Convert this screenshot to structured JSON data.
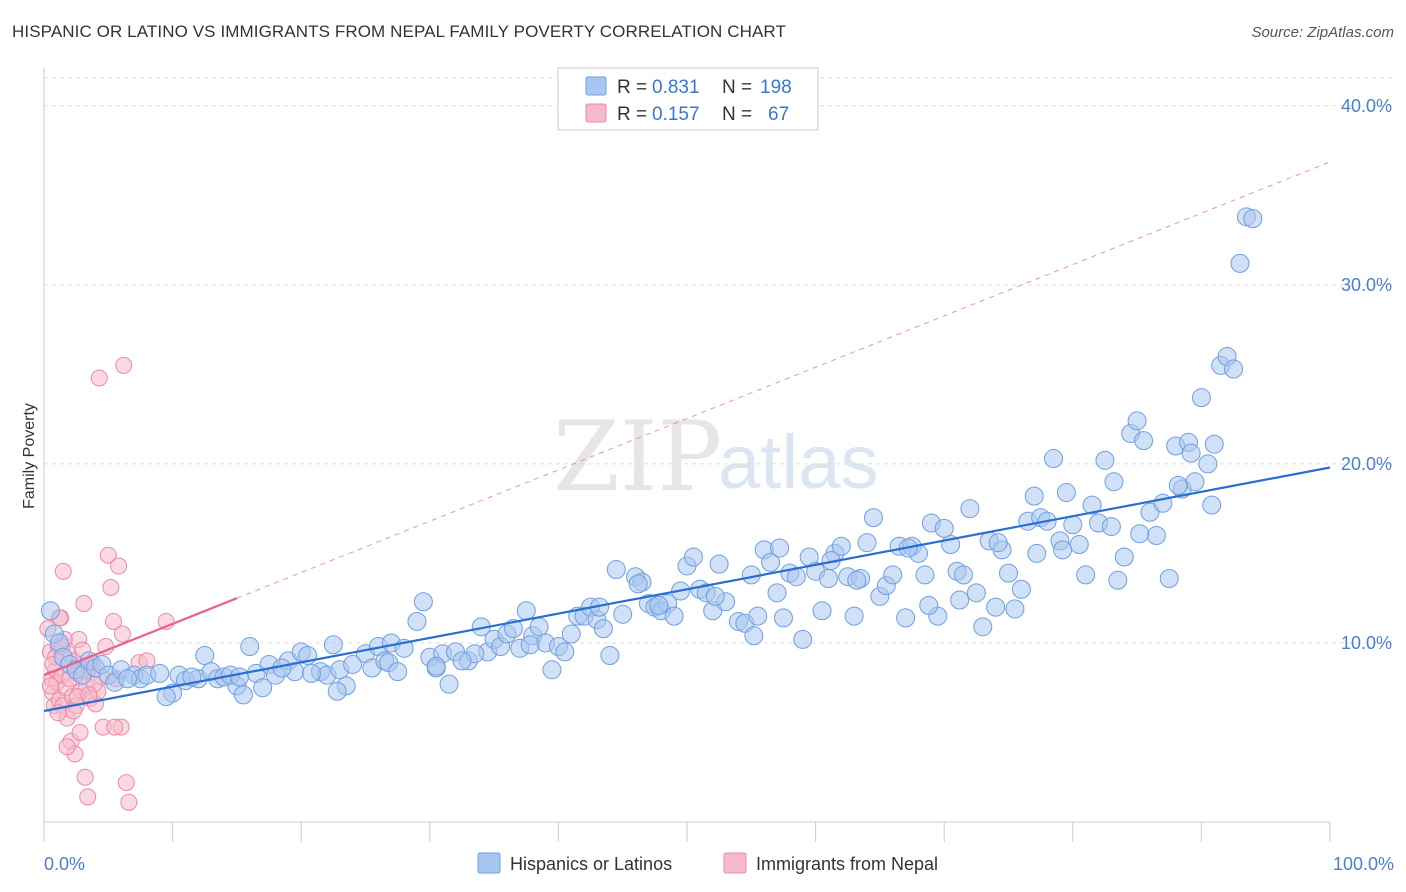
{
  "title": "HISPANIC OR LATINO VS IMMIGRANTS FROM NEPAL FAMILY POVERTY CORRELATION CHART",
  "source": "Source: ZipAtlas.com",
  "watermark": {
    "part1": "ZIP",
    "part2": "atlas"
  },
  "legend": {
    "series1": {
      "r_label": "R =",
      "r_value": "0.831",
      "n_label": "N =",
      "n_value": "198"
    },
    "series2": {
      "r_label": "R =",
      "r_value": "0.157",
      "n_label": "N =",
      "n_value": "67"
    }
  },
  "bottom_legend": {
    "series1": "Hispanics or Latinos",
    "series2": "Immigrants from Nepal"
  },
  "colors": {
    "blue_fill": "#a9c6f0",
    "blue_stroke": "#6f9fe0",
    "blue_line": "#2a6fd0",
    "pink_fill": "#f6b9cb",
    "pink_stroke": "#ec8aa8",
    "pink_line": "#e8628a",
    "tick": "#4a7fd0"
  },
  "chart_data": {
    "type": "scatter",
    "title": "HISPANIC OR LATINO VS IMMIGRANTS FROM NEPAL FAMILY POVERTY CORRELATION CHART",
    "xlabel": "",
    "ylabel": "Family Poverty",
    "xlim": [
      0,
      100
    ],
    "ylim": [
      0,
      42
    ],
    "x_tick_labels": [
      "0.0%",
      "100.0%"
    ],
    "y_ticks": [
      10,
      20,
      30,
      40
    ],
    "y_tick_labels": [
      "10.0%",
      "20.0%",
      "30.0%",
      "40.0%"
    ],
    "grid": true,
    "legend_position": "top-center",
    "series": [
      {
        "name": "Hispanics or Latinos",
        "trend": {
          "x": [
            0,
            100
          ],
          "y": [
            6.2,
            19.8
          ]
        },
        "points": [
          [
            0.5,
            11.8
          ],
          [
            0.8,
            10.5
          ],
          [
            1.2,
            10.0
          ],
          [
            1.5,
            9.2
          ],
          [
            2.0,
            8.8
          ],
          [
            2.5,
            8.5
          ],
          [
            3.0,
            8.2
          ],
          [
            3.5,
            9.0
          ],
          [
            4.0,
            8.6
          ],
          [
            4.5,
            8.8
          ],
          [
            5.0,
            8.2
          ],
          [
            5.5,
            7.8
          ],
          [
            6.0,
            8.5
          ],
          [
            7.0,
            8.2
          ],
          [
            7.5,
            8.0
          ],
          [
            8.0,
            8.2
          ],
          [
            9.0,
            8.3
          ],
          [
            10.0,
            7.2
          ],
          [
            10.5,
            8.2
          ],
          [
            11.0,
            7.9
          ],
          [
            12.0,
            8.0
          ],
          [
            12.5,
            9.3
          ],
          [
            13.0,
            8.4
          ],
          [
            13.5,
            8.0
          ],
          [
            14.0,
            8.1
          ],
          [
            15.0,
            7.6
          ],
          [
            15.5,
            7.1
          ],
          [
            16.0,
            9.8
          ],
          [
            16.5,
            8.3
          ],
          [
            17.0,
            7.5
          ],
          [
            17.5,
            8.8
          ],
          [
            18.0,
            8.2
          ],
          [
            19.0,
            9.0
          ],
          [
            19.5,
            8.4
          ],
          [
            20.0,
            9.5
          ],
          [
            20.5,
            9.3
          ],
          [
            21.5,
            8.4
          ],
          [
            22.0,
            8.2
          ],
          [
            22.5,
            9.9
          ],
          [
            23.0,
            8.5
          ],
          [
            23.5,
            7.6
          ],
          [
            24.0,
            8.8
          ],
          [
            25.0,
            9.4
          ],
          [
            25.5,
            8.6
          ],
          [
            26.0,
            9.8
          ],
          [
            26.5,
            9.0
          ],
          [
            27.0,
            10.0
          ],
          [
            28.0,
            9.7
          ],
          [
            29.0,
            11.2
          ],
          [
            29.5,
            12.3
          ],
          [
            30.0,
            9.2
          ],
          [
            30.5,
            8.6
          ],
          [
            31.0,
            9.4
          ],
          [
            31.5,
            7.7
          ],
          [
            32.0,
            9.5
          ],
          [
            33.0,
            9.0
          ],
          [
            34.0,
            10.9
          ],
          [
            34.5,
            9.5
          ],
          [
            35.0,
            10.2
          ],
          [
            35.5,
            9.8
          ],
          [
            36.0,
            10.5
          ],
          [
            37.0,
            9.7
          ],
          [
            37.5,
            11.8
          ],
          [
            38.0,
            10.4
          ],
          [
            38.5,
            10.9
          ],
          [
            39.0,
            10.0
          ],
          [
            39.5,
            8.5
          ],
          [
            40.0,
            9.8
          ],
          [
            41.0,
            10.5
          ],
          [
            41.5,
            11.5
          ],
          [
            42.0,
            11.5
          ],
          [
            42.5,
            12.0
          ],
          [
            43.0,
            11.3
          ],
          [
            43.5,
            10.8
          ],
          [
            44.0,
            9.3
          ],
          [
            44.5,
            14.1
          ],
          [
            45.0,
            11.6
          ],
          [
            46.0,
            13.7
          ],
          [
            46.5,
            13.4
          ],
          [
            47.0,
            12.2
          ],
          [
            47.5,
            12.0
          ],
          [
            48.0,
            11.8
          ],
          [
            48.5,
            12.2
          ],
          [
            49.0,
            11.5
          ],
          [
            50.0,
            14.3
          ],
          [
            50.5,
            14.8
          ],
          [
            51.0,
            13.0
          ],
          [
            51.5,
            12.8
          ],
          [
            52.0,
            11.8
          ],
          [
            52.5,
            14.4
          ],
          [
            53.0,
            12.3
          ],
          [
            54.0,
            11.2
          ],
          [
            54.5,
            11.1
          ],
          [
            55.0,
            13.8
          ],
          [
            55.5,
            11.5
          ],
          [
            56.0,
            15.2
          ],
          [
            56.5,
            14.5
          ],
          [
            57.0,
            12.8
          ],
          [
            57.5,
            11.4
          ],
          [
            58.0,
            13.9
          ],
          [
            58.5,
            13.7
          ],
          [
            59.0,
            10.2
          ],
          [
            59.5,
            14.8
          ],
          [
            60.0,
            14.0
          ],
          [
            60.5,
            11.8
          ],
          [
            61.0,
            13.6
          ],
          [
            61.5,
            15.0
          ],
          [
            62.0,
            15.4
          ],
          [
            62.5,
            13.7
          ],
          [
            63.0,
            11.5
          ],
          [
            63.5,
            13.6
          ],
          [
            64.0,
            15.6
          ],
          [
            64.5,
            17.0
          ],
          [
            65.0,
            12.6
          ],
          [
            65.5,
            13.2
          ],
          [
            66.0,
            13.8
          ],
          [
            66.5,
            15.4
          ],
          [
            67.0,
            11.4
          ],
          [
            67.5,
            15.4
          ],
          [
            68.0,
            15.0
          ],
          [
            68.5,
            13.8
          ],
          [
            69.0,
            16.7
          ],
          [
            69.5,
            11.5
          ],
          [
            70.0,
            16.4
          ],
          [
            70.5,
            15.5
          ],
          [
            71.0,
            14.0
          ],
          [
            71.5,
            13.8
          ],
          [
            72.0,
            17.5
          ],
          [
            72.5,
            12.8
          ],
          [
            73.0,
            10.9
          ],
          [
            73.5,
            15.7
          ],
          [
            74.0,
            12.0
          ],
          [
            74.5,
            15.2
          ],
          [
            75.0,
            13.9
          ],
          [
            75.5,
            11.9
          ],
          [
            76.0,
            13.0
          ],
          [
            76.5,
            16.8
          ],
          [
            77.0,
            18.2
          ],
          [
            77.5,
            17.0
          ],
          [
            78.0,
            16.8
          ],
          [
            78.5,
            20.3
          ],
          [
            79.0,
            15.7
          ],
          [
            79.5,
            18.4
          ],
          [
            80.0,
            16.6
          ],
          [
            80.5,
            15.5
          ],
          [
            81.0,
            13.8
          ],
          [
            81.5,
            17.7
          ],
          [
            82.0,
            16.7
          ],
          [
            82.5,
            20.2
          ],
          [
            83.0,
            16.5
          ],
          [
            83.5,
            13.5
          ],
          [
            84.0,
            14.8
          ],
          [
            84.5,
            21.7
          ],
          [
            85.0,
            22.4
          ],
          [
            85.5,
            21.3
          ],
          [
            86.0,
            17.3
          ],
          [
            86.5,
            16.0
          ],
          [
            87.0,
            17.8
          ],
          [
            87.5,
            13.6
          ],
          [
            88.0,
            21.0
          ],
          [
            88.5,
            18.6
          ],
          [
            89.0,
            21.2
          ],
          [
            89.5,
            19.0
          ],
          [
            90.0,
            23.7
          ],
          [
            90.5,
            20.0
          ],
          [
            91.0,
            21.1
          ],
          [
            91.5,
            25.5
          ],
          [
            92.0,
            26.0
          ],
          [
            92.5,
            25.3
          ],
          [
            93.0,
            31.2
          ],
          [
            93.5,
            33.8
          ],
          [
            94.0,
            33.7
          ],
          [
            30.5,
            8.7
          ],
          [
            36.5,
            10.8
          ],
          [
            22.8,
            7.3
          ],
          [
            9.5,
            7.0
          ],
          [
            40.5,
            9.5
          ],
          [
            47.8,
            12.1
          ],
          [
            68.8,
            12.1
          ],
          [
            88.2,
            18.8
          ],
          [
            14.5,
            8.2
          ],
          [
            18.5,
            8.6
          ],
          [
            26.8,
            8.9
          ],
          [
            33.5,
            9.4
          ],
          [
            49.5,
            12.9
          ],
          [
            55.2,
            10.4
          ],
          [
            61.2,
            14.6
          ],
          [
            71.2,
            12.4
          ],
          [
            79.2,
            15.2
          ],
          [
            85.2,
            16.1
          ],
          [
            6.5,
            8.0
          ],
          [
            11.5,
            8.1
          ],
          [
            15.2,
            8.1
          ],
          [
            20.8,
            8.3
          ],
          [
            27.5,
            8.4
          ],
          [
            32.5,
            9.0
          ],
          [
            37.8,
            9.9
          ],
          [
            43.2,
            12.0
          ],
          [
            46.2,
            13.3
          ],
          [
            52.2,
            12.6
          ],
          [
            57.2,
            15.3
          ],
          [
            63.2,
            13.5
          ],
          [
            67.2,
            15.3
          ],
          [
            74.2,
            15.6
          ],
          [
            77.2,
            15.0
          ],
          [
            83.2,
            19.0
          ],
          [
            89.2,
            20.6
          ],
          [
            90.8,
            17.7
          ]
        ]
      },
      {
        "name": "Immigrants from Nepal",
        "trend": {
          "x": [
            0,
            15
          ],
          "y": [
            8.2,
            12.5
          ]
        },
        "points": [
          [
            0.3,
            10.8
          ],
          [
            0.5,
            9.5
          ],
          [
            0.6,
            8.0
          ],
          [
            0.7,
            7.2
          ],
          [
            0.8,
            6.5
          ],
          [
            0.9,
            8.5
          ],
          [
            1.0,
            7.8
          ],
          [
            1.1,
            9.8
          ],
          [
            1.2,
            6.8
          ],
          [
            1.3,
            11.4
          ],
          [
            1.4,
            8.2
          ],
          [
            1.5,
            6.5
          ],
          [
            1.6,
            10.2
          ],
          [
            1.7,
            7.5
          ],
          [
            1.8,
            5.8
          ],
          [
            1.9,
            9.4
          ],
          [
            2.0,
            8.0
          ],
          [
            2.1,
            4.5
          ],
          [
            2.2,
            7.0
          ],
          [
            2.3,
            9.0
          ],
          [
            2.4,
            3.8
          ],
          [
            2.5,
            6.5
          ],
          [
            2.6,
            8.3
          ],
          [
            2.7,
            10.2
          ],
          [
            2.8,
            5.0
          ],
          [
            2.9,
            7.3
          ],
          [
            3.0,
            9.6
          ],
          [
            3.1,
            12.2
          ],
          [
            3.2,
            2.5
          ],
          [
            3.3,
            7.6
          ],
          [
            3.4,
            1.4
          ],
          [
            3.5,
            8.6
          ],
          [
            3.6,
            6.9
          ],
          [
            3.8,
            8.9
          ],
          [
            4.0,
            6.6
          ],
          [
            4.2,
            7.3
          ],
          [
            4.5,
            8.1
          ],
          [
            4.8,
            9.8
          ],
          [
            5.0,
            14.9
          ],
          [
            5.2,
            13.1
          ],
          [
            5.4,
            11.2
          ],
          [
            5.6,
            8.0
          ],
          [
            5.8,
            14.3
          ],
          [
            6.0,
            5.3
          ],
          [
            6.2,
            25.5
          ],
          [
            6.4,
            2.2
          ],
          [
            6.6,
            1.1
          ],
          [
            9.5,
            11.2
          ],
          [
            4.3,
            24.8
          ],
          [
            1.5,
            14.0
          ],
          [
            1.2,
            11.4
          ],
          [
            0.9,
            9.2
          ],
          [
            0.5,
            7.6
          ],
          [
            2.3,
            6.2
          ],
          [
            3.1,
            8.5
          ],
          [
            3.9,
            7.7
          ],
          [
            4.6,
            5.3
          ],
          [
            1.8,
            4.2
          ],
          [
            1.4,
            9.8
          ],
          [
            0.7,
            8.8
          ],
          [
            2.6,
            7.0
          ],
          [
            3.5,
            7.1
          ],
          [
            6.1,
            10.5
          ],
          [
            7.4,
            8.9
          ],
          [
            5.5,
            5.3
          ],
          [
            8.0,
            9.0
          ],
          [
            1.1,
            6.1
          ]
        ]
      }
    ]
  }
}
